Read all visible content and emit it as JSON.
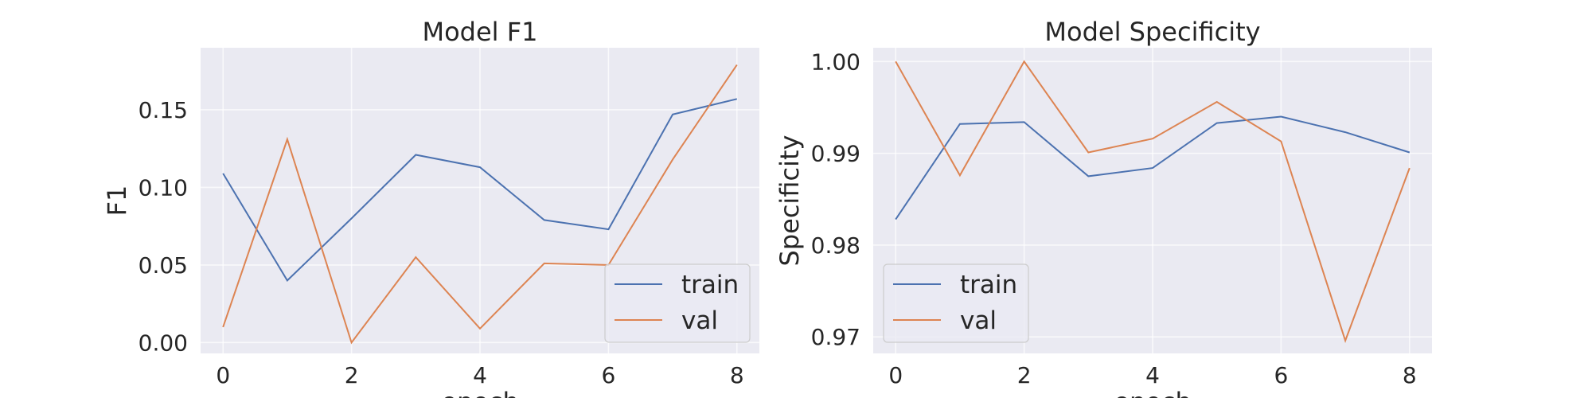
{
  "chart_data": [
    {
      "type": "line",
      "title": "Model F1",
      "xlabel": "epoch",
      "ylabel": "F1",
      "x": [
        0,
        1,
        2,
        3,
        4,
        5,
        6,
        7,
        8
      ],
      "xlim": [
        -0.35,
        8.35
      ],
      "ylim": [
        -0.007,
        0.19
      ],
      "xticks": [
        0,
        2,
        4,
        6,
        8
      ],
      "xtick_labels": [
        "0",
        "2",
        "4",
        "6",
        "8"
      ],
      "yticks": [
        0.0,
        0.05,
        0.1,
        0.15
      ],
      "ytick_labels": [
        "0.00",
        "0.05",
        "0.10",
        "0.15"
      ],
      "grid": true,
      "legend": "lower-right",
      "series": [
        {
          "name": "train",
          "color": "#4c72b0",
          "values": [
            0.109,
            0.04,
            0.08,
            0.121,
            0.113,
            0.079,
            0.073,
            0.147,
            0.157
          ]
        },
        {
          "name": "val",
          "color": "#dd8452",
          "values": [
            0.01,
            0.131,
            0.0,
            0.055,
            0.009,
            0.051,
            0.05,
            0.118,
            0.179
          ]
        }
      ]
    },
    {
      "type": "line",
      "title": "Model Specificity",
      "xlabel": "epoch",
      "ylabel": "Specificity",
      "x": [
        0,
        1,
        2,
        3,
        4,
        5,
        6,
        7,
        8
      ],
      "xlim": [
        -0.35,
        8.35
      ],
      "ylim": [
        0.9682,
        1.0015
      ],
      "xticks": [
        0,
        2,
        4,
        6,
        8
      ],
      "xtick_labels": [
        "0",
        "2",
        "4",
        "6",
        "8"
      ],
      "yticks": [
        0.97,
        0.98,
        0.99,
        1.0
      ],
      "ytick_labels": [
        "0.97",
        "0.98",
        "0.99",
        "1.00"
      ],
      "grid": true,
      "legend": "lower-left",
      "series": [
        {
          "name": "train",
          "color": "#4c72b0",
          "values": [
            0.9828,
            0.9932,
            0.9934,
            0.9875,
            0.9884,
            0.9933,
            0.994,
            0.9923,
            0.9901
          ]
        },
        {
          "name": "val",
          "color": "#dd8452",
          "values": [
            1.0,
            0.9876,
            1.0,
            0.9901,
            0.9916,
            0.9956,
            0.9913,
            0.9696,
            0.9884
          ]
        }
      ]
    }
  ]
}
